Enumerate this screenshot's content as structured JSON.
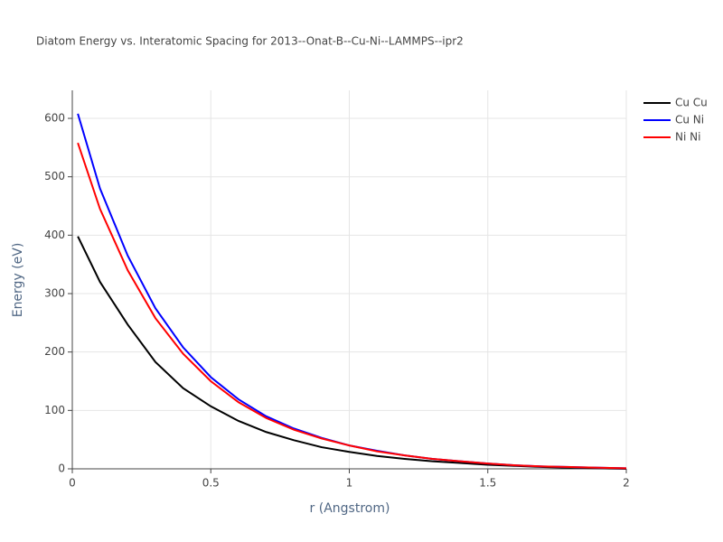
{
  "chart_data": {
    "type": "line",
    "title": "Diatom Energy vs. Interatomic Spacing for 2013--Onat-B--Cu-Ni--LAMMPS--ipr2",
    "x_label": "r (Angstrom)",
    "y_label": "Energy (eV)",
    "x": [
      0.02,
      0.1,
      0.2,
      0.3,
      0.4,
      0.5,
      0.6,
      0.7,
      0.8,
      0.9,
      1.0,
      1.1,
      1.2,
      1.3,
      1.4,
      1.5,
      1.6,
      1.7,
      1.8,
      1.9,
      2.0
    ],
    "series": [
      {
        "name": "Cu Cu",
        "color": "#000000",
        "values": [
          398,
          320,
          247,
          183,
          138,
          107,
          82,
          63,
          49,
          37,
          29,
          22,
          17,
          13,
          10,
          7,
          5,
          3,
          2,
          1,
          0
        ]
      },
      {
        "name": "Cu Ni",
        "color": "#0000ff",
        "values": [
          608,
          480,
          365,
          275,
          208,
          157,
          119,
          90,
          69,
          53,
          40,
          31,
          23,
          17,
          13,
          9,
          6,
          4,
          3,
          2,
          1
        ]
      },
      {
        "name": "Ni Ni",
        "color": "#ff0000",
        "values": [
          558,
          445,
          340,
          258,
          197,
          150,
          114,
          87,
          67,
          52,
          40,
          30,
          23,
          17,
          13,
          9,
          6,
          4,
          3,
          2,
          1
        ]
      }
    ],
    "xlim": [
      0,
      2
    ],
    "xticks": [
      0,
      0.5,
      1,
      1.5,
      2
    ],
    "ylim": [
      0,
      648
    ],
    "yticks": [
      0,
      100,
      200,
      300,
      400,
      500,
      600
    ],
    "grid": true,
    "legend": "top-right"
  }
}
